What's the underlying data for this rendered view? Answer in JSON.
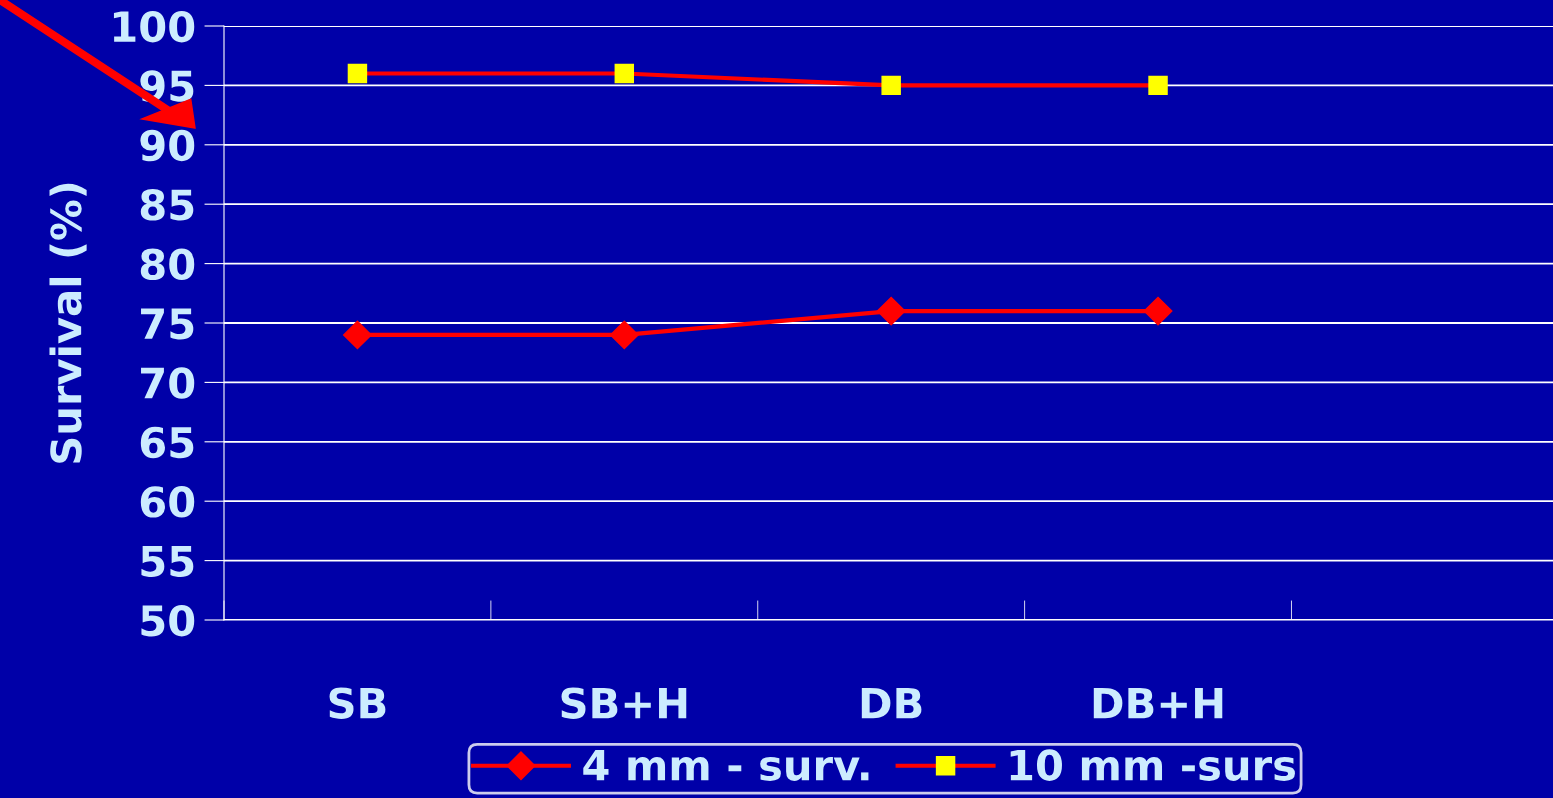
{
  "chart_data": {
    "type": "line",
    "ylabel": "Survival (%)",
    "categories": [
      "SB",
      "SB+H",
      "DB",
      "DB+H"
    ],
    "series": [
      {
        "name": "4 mm - surv.",
        "color": "#ff0000",
        "marker": "diamond",
        "values": [
          74,
          74,
          76,
          76
        ]
      },
      {
        "name": "10 mm -surs",
        "color": "#ff0000",
        "marker": "square",
        "values": [
          96,
          96,
          95,
          95
        ]
      }
    ],
    "ylim": [
      50,
      100
    ],
    "yticks": [
      50,
      55,
      60,
      65,
      70,
      75,
      80,
      85,
      90,
      95,
      100
    ],
    "grid": "y",
    "legend": "bottom",
    "line_style": "solid"
  }
}
